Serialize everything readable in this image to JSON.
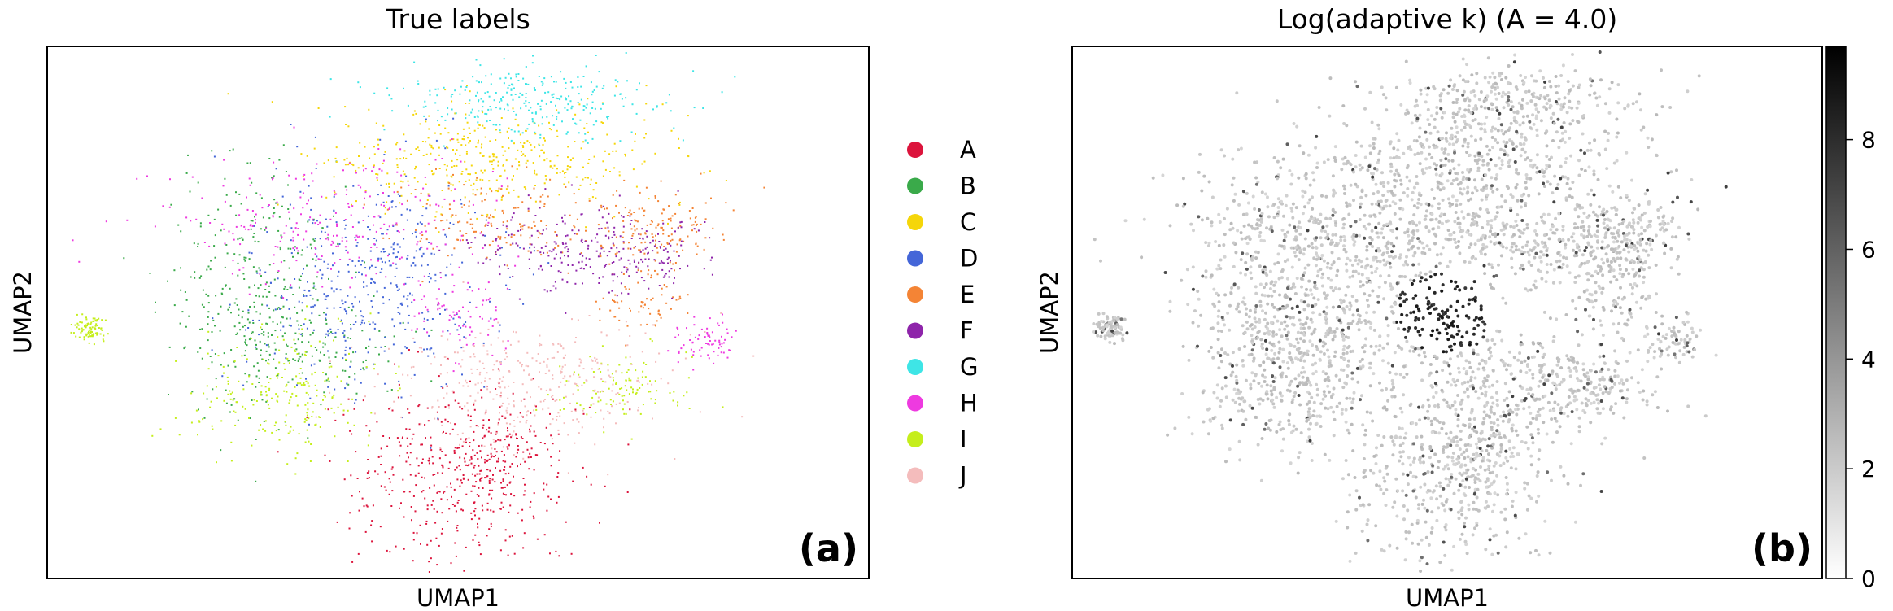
{
  "chart_data": [
    {
      "type": "scatter",
      "panel_label": "(a)",
      "title": "True labels",
      "xlabel": "UMAP1",
      "ylabel": "UMAP2",
      "grid": false,
      "legend_placement": "right-outside",
      "legend": [
        {
          "label": "A",
          "color": "#dc143c"
        },
        {
          "label": "B",
          "color": "#3aaa4a"
        },
        {
          "label": "C",
          "color": "#f5d60a"
        },
        {
          "label": "D",
          "color": "#4466d8"
        },
        {
          "label": "E",
          "color": "#f48435"
        },
        {
          "label": "F",
          "color": "#8e24aa"
        },
        {
          "label": "G",
          "color": "#3ee5e6"
        },
        {
          "label": "H",
          "color": "#ee3ae0"
        },
        {
          "label": "I",
          "color": "#c5ee1c"
        },
        {
          "label": "J",
          "color": "#f4bcbc"
        }
      ]
    },
    {
      "type": "scatter",
      "panel_label": "(b)",
      "title": "Log(adaptive k) (A = 4.0)",
      "xlabel": "UMAP1",
      "ylabel": "UMAP2",
      "grid": false,
      "colorbar": {
        "colormap": "greys",
        "range": [
          0,
          9.7
        ],
        "ticks": [
          0,
          2,
          4,
          6,
          8
        ]
      }
    }
  ]
}
